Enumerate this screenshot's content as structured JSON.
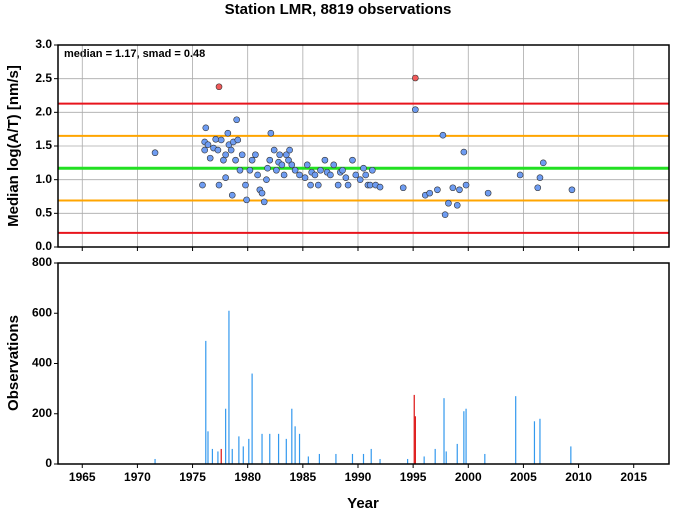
{
  "chart_data": [
    {
      "type": "scatter",
      "title": "Station LMR, 8819 observations",
      "annotation": "median = 1.17, smad = 0.48",
      "ylabel": "Median log(A/T) [nm/s]",
      "xlim": [
        1962.8,
        2018.2
      ],
      "ylim": [
        0,
        3
      ],
      "yticks": [
        {
          "value": 0,
          "label": "0.0"
        },
        {
          "value": 0.5,
          "label": "0.5"
        },
        {
          "value": 1,
          "label": "1.0"
        },
        {
          "value": 1.5,
          "label": "1.5"
        },
        {
          "value": 2,
          "label": "2.0"
        },
        {
          "value": 2.5,
          "label": "2.5"
        },
        {
          "value": 3,
          "label": "3.0"
        }
      ],
      "grid": true,
      "hlines": [
        {
          "value": 2.13,
          "color": "#e8141c"
        },
        {
          "value": 0.21,
          "color": "#e8141c"
        },
        {
          "value": 1.65,
          "color": "#ffa500"
        },
        {
          "value": 0.69,
          "color": "#ffa500"
        },
        {
          "value": 1.17,
          "color": "#22e022"
        }
      ],
      "series": [
        {
          "color": "#6e9cf2",
          "x": [
            1971.6,
            1995.2,
            1976.2,
            1976.1,
            1976.4,
            1976.1,
            1975.9,
            1976.6,
            1976.9,
            1977.1,
            1977.3,
            1977.6,
            1977.8,
            1978.0,
            1978.2,
            1978.3,
            1978.5,
            1978.7,
            1978.9,
            1979.0,
            1979.1,
            1979.3,
            1979.5,
            1979.8,
            1979.9,
            1978.6,
            1978.0,
            1977.4,
            1980.2,
            1980.4,
            1980.7,
            1980.9,
            1981.1,
            1981.3,
            1981.5,
            1981.7,
            1981.8,
            1982.0,
            1982.1,
            1982.4,
            1982.6,
            1982.8,
            1982.9,
            1983.1,
            1983.3,
            1983.5,
            1983.7,
            1983.8,
            1984.0,
            1984.3,
            1984.7,
            1985.2,
            1985.4,
            1985.7,
            1985.8,
            1986.1,
            1986.4,
            1986.6,
            1987.0,
            1987.2,
            1987.5,
            1987.8,
            1988.2,
            1988.4,
            1988.6,
            1988.9,
            1989.1,
            1989.5,
            1989.8,
            1990.2,
            1990.5,
            1990.7,
            1990.9,
            1991.1,
            1991.3,
            1991.6,
            1992.0,
            1994.1,
            1996.1,
            1996.5,
            1997.2,
            1997.7,
            1997.9,
            1998.2,
            1998.6,
            1999.0,
            1999.2,
            1999.6,
            1999.8,
            2001.8,
            2004.7,
            2006.3,
            2006.5,
            2006.8,
            2009.4
          ],
          "values": [
            1.4,
            2.04,
            1.77,
            1.56,
            1.52,
            1.44,
            0.92,
            1.32,
            1.47,
            1.6,
            1.44,
            1.59,
            1.29,
            1.37,
            1.69,
            1.52,
            1.44,
            1.56,
            1.29,
            1.89,
            1.59,
            1.14,
            1.37,
            0.92,
            0.7,
            0.77,
            1.03,
            0.92,
            1.14,
            1.29,
            1.37,
            1.07,
            0.85,
            0.8,
            0.67,
            1.0,
            1.17,
            1.29,
            1.69,
            1.44,
            1.14,
            1.26,
            1.37,
            1.22,
            1.07,
            1.37,
            1.29,
            1.44,
            1.22,
            1.14,
            1.07,
            1.03,
            1.22,
            0.92,
            1.11,
            1.07,
            0.92,
            1.14,
            1.29,
            1.11,
            1.07,
            1.22,
            0.92,
            1.11,
            1.14,
            1.03,
            0.92,
            1.29,
            1.07,
            1.0,
            1.17,
            1.07,
            0.92,
            0.92,
            1.14,
            0.92,
            0.89,
            0.88,
            0.77,
            0.8,
            0.85,
            1.66,
            0.48,
            0.65,
            0.88,
            0.62,
            0.85,
            1.41,
            0.92,
            0.8,
            1.07,
            0.88,
            1.03,
            1.25,
            0.85
          ]
        },
        {
          "color": "#f05a5a",
          "x": [
            1977.4,
            1995.2
          ],
          "values": [
            2.38,
            2.51
          ]
        }
      ]
    },
    {
      "type": "bar",
      "xlabel": "Year",
      "ylabel": "Observations",
      "xlim": [
        1962.8,
        2018.2
      ],
      "ylim": [
        0,
        800
      ],
      "xticks": [
        1965,
        1970,
        1975,
        1980,
        1985,
        1990,
        1995,
        2000,
        2005,
        2010,
        2015
      ],
      "yticks": [
        0,
        200,
        400,
        600,
        800
      ],
      "series": [
        {
          "color": "#3399ee",
          "x": [
            1971.6,
            1976.2,
            1976.4,
            1976.8,
            1977.3,
            1978.0,
            1978.3,
            1978.6,
            1979.2,
            1979.6,
            1980.1,
            1980.4,
            1981.3,
            1982.0,
            1982.8,
            1983.5,
            1984.0,
            1984.3,
            1984.7,
            1985.5,
            1986.5,
            1988.0,
            1989.5,
            1990.5,
            1991.2,
            1992.0,
            1994.5,
            1996.0,
            1997.0,
            1997.8,
            1998.0,
            1999.0,
            1999.6,
            1999.8,
            2001.5,
            2004.3,
            2006.0,
            2006.5,
            2009.3
          ],
          "values": [
            20,
            490,
            130,
            60,
            50,
            220,
            610,
            60,
            110,
            70,
            100,
            360,
            120,
            120,
            120,
            100,
            220,
            150,
            120,
            30,
            40,
            40,
            40,
            40,
            60,
            20,
            20,
            30,
            60,
            262,
            50,
            80,
            210,
            220,
            40,
            270,
            170,
            180,
            70
          ]
        },
        {
          "color": "#dd1111",
          "x": [
            1977.6,
            1995.1,
            1995.2
          ],
          "values": [
            60,
            275,
            190
          ]
        }
      ]
    }
  ]
}
